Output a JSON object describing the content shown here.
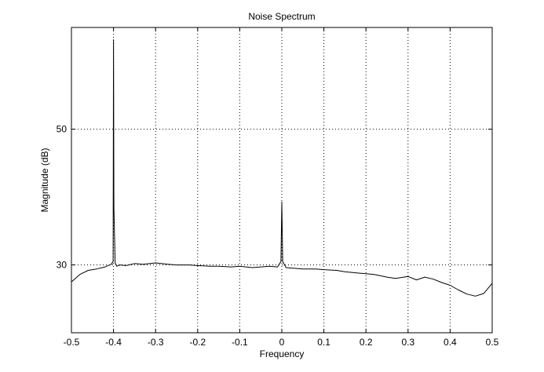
{
  "chart_data": {
    "type": "line",
    "title": "Noise Spectrum",
    "xlabel": "Frequency",
    "ylabel": "Magnitude (dB)",
    "xlim": [
      -0.5,
      0.5
    ],
    "ylim": [
      20,
      65
    ],
    "grid": true,
    "x_ticks": [
      -0.5,
      -0.4,
      -0.3,
      -0.2,
      -0.1,
      0,
      0.1,
      0.2,
      0.3,
      0.4,
      0.5
    ],
    "x_tick_labels": [
      "-0.5",
      "-0.4",
      "-0.3",
      "-0.2",
      "-0.1",
      "0",
      "0.1",
      "0.2",
      "0.3",
      "0.4",
      "0.5"
    ],
    "y_ticks": [
      30,
      50
    ],
    "y_tick_labels": [
      "30",
      "50"
    ],
    "line_color": "#000000",
    "series": [
      {
        "x": [
          -0.5,
          -0.48,
          -0.46,
          -0.44,
          -0.42,
          -0.405,
          -0.401,
          -0.4,
          -0.399,
          -0.396,
          -0.392,
          -0.385,
          -0.37,
          -0.35,
          -0.33,
          -0.3,
          -0.27,
          -0.25,
          -0.22,
          -0.2,
          -0.17,
          -0.15,
          -0.12,
          -0.1,
          -0.07,
          -0.05,
          -0.03,
          -0.01,
          -0.002,
          0,
          0.002,
          0.01,
          0.03,
          0.05,
          0.08,
          0.1,
          0.13,
          0.15,
          0.18,
          0.2,
          0.22,
          0.25,
          0.27,
          0.3,
          0.32,
          0.34,
          0.36,
          0.38,
          0.4,
          0.42,
          0.44,
          0.46,
          0.48,
          0.5
        ],
        "y": [
          27.5,
          28.6,
          29.2,
          29.4,
          29.7,
          30.1,
          30.5,
          63.2,
          38.5,
          30.3,
          29.8,
          30.0,
          29.9,
          30.2,
          30.1,
          30.3,
          30.1,
          30.0,
          30.0,
          29.9,
          29.8,
          29.8,
          29.7,
          29.8,
          29.6,
          29.7,
          29.8,
          29.7,
          30.5,
          39.3,
          30.5,
          29.6,
          29.5,
          29.4,
          29.4,
          29.3,
          29.2,
          29.0,
          28.8,
          28.7,
          28.6,
          28.2,
          28.0,
          28.3,
          27.8,
          28.2,
          27.9,
          27.4,
          27.0,
          26.3,
          25.7,
          25.4,
          25.8,
          27.3
        ]
      }
    ]
  }
}
